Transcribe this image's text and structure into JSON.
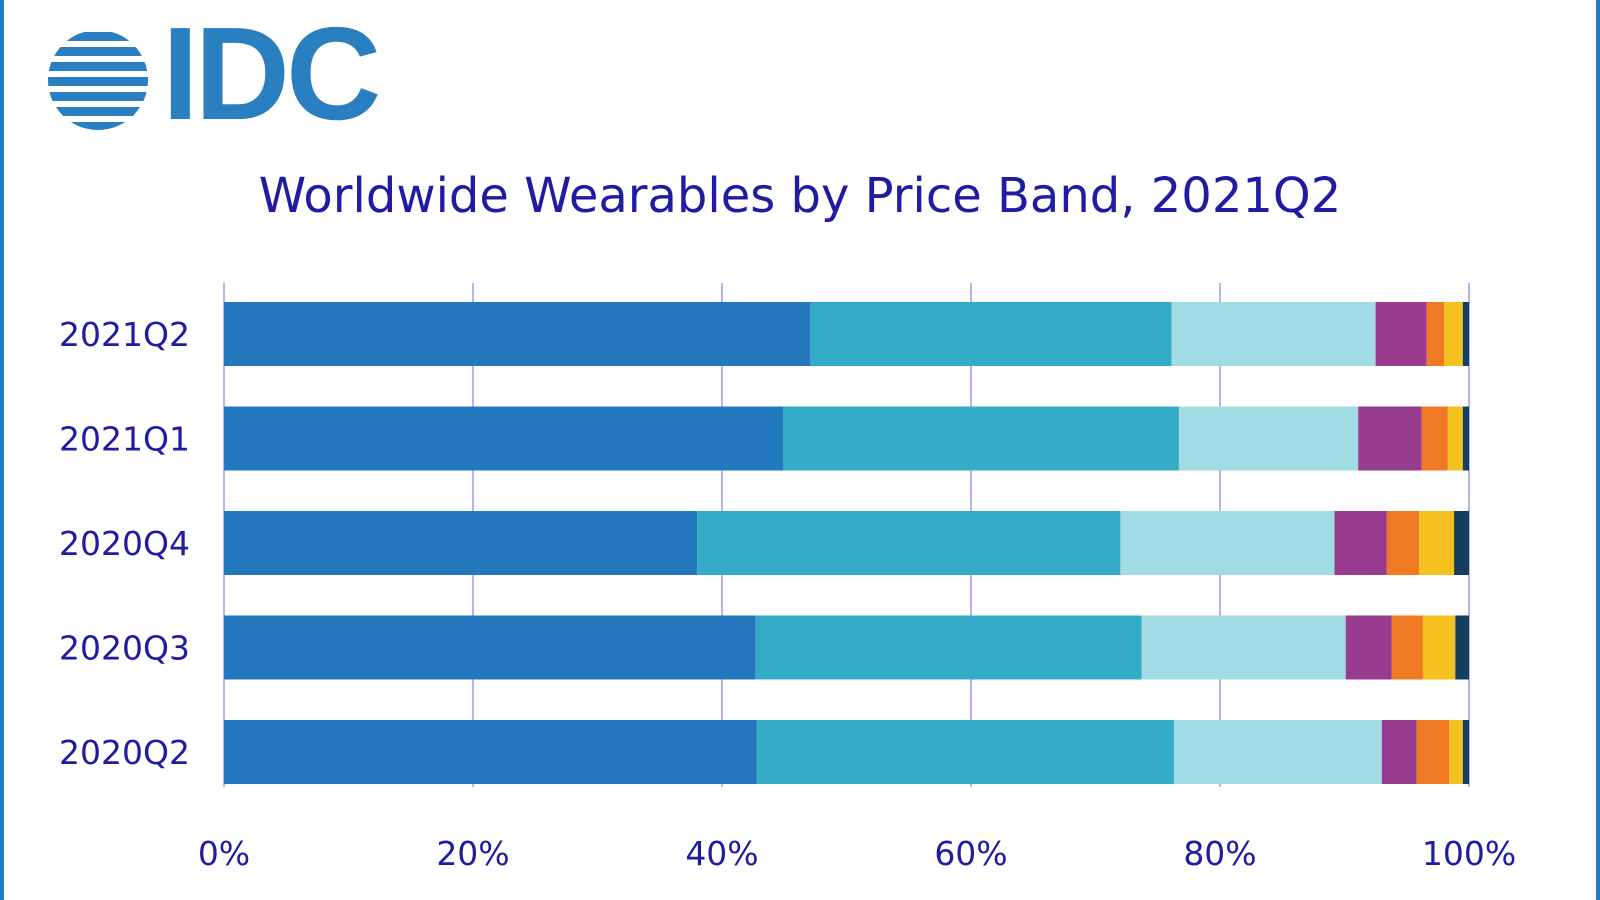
{
  "logo": {
    "text": "IDC",
    "icon": "globe-stripes-icon",
    "color": "#2a7fc1"
  },
  "chart_data": {
    "type": "bar",
    "orientation": "horizontal",
    "stacked": true,
    "title": "Worldwide Wearables by Price Band, 2021Q2",
    "xlabel": "",
    "ylabel": "",
    "xlim": [
      0,
      100
    ],
    "grid": true,
    "legend": "none",
    "x_ticks": [
      "0%",
      "20%",
      "40%",
      "60%",
      "80%",
      "100%"
    ],
    "categories": [
      "2021Q2",
      "2021Q1",
      "2020Q4",
      "2020Q3",
      "2020Q2"
    ],
    "colors": [
      "#2478bd",
      "#35acc7",
      "#a1dbe3",
      "#973b8e",
      "#ef7a23",
      "#f4c11e",
      "#17405e"
    ],
    "series": [
      {
        "values": [
          47.1,
          44.9,
          38.0,
          42.7,
          42.8
        ]
      },
      {
        "values": [
          29.0,
          31.8,
          34.0,
          31.0,
          33.5
        ]
      },
      {
        "values": [
          16.4,
          14.4,
          17.2,
          16.4,
          16.7
        ]
      },
      {
        "values": [
          4.1,
          5.1,
          4.2,
          3.7,
          2.8
        ]
      },
      {
        "values": [
          1.4,
          2.1,
          2.6,
          2.5,
          2.6
        ]
      },
      {
        "values": [
          1.5,
          1.2,
          2.8,
          2.6,
          1.1
        ]
      },
      {
        "values": [
          0.5,
          0.5,
          1.2,
          1.1,
          0.5
        ]
      }
    ]
  }
}
